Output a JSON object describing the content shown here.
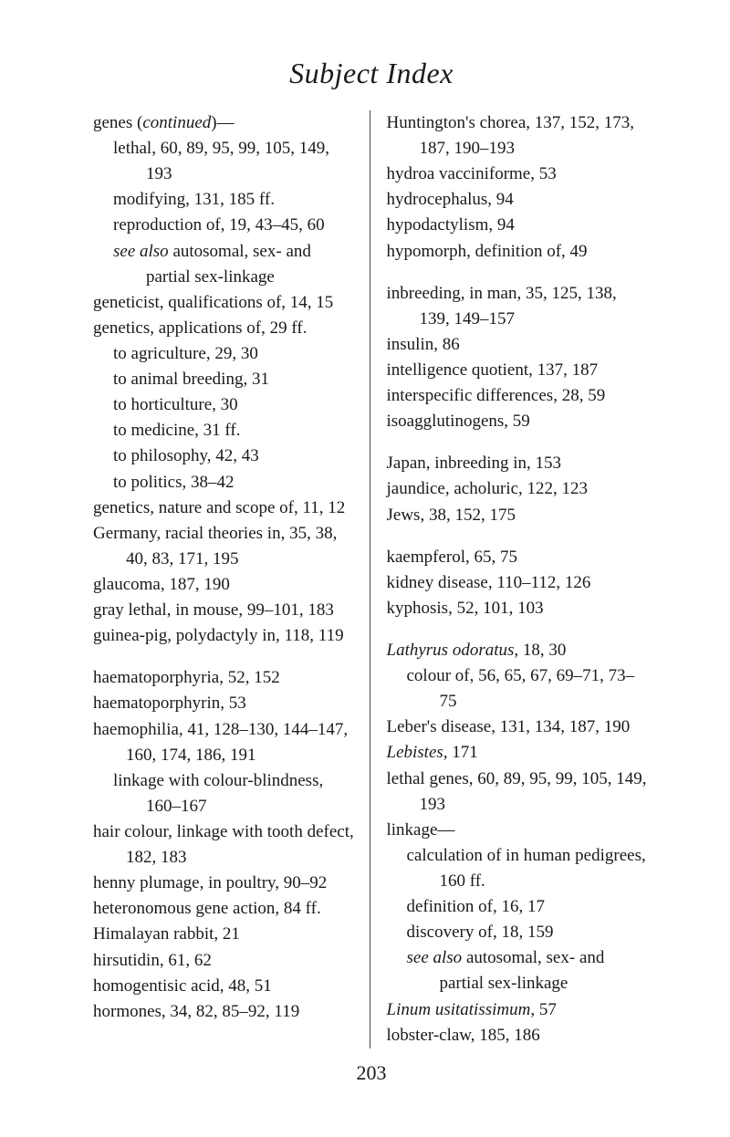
{
  "page": {
    "title": "Subject Index",
    "pageNumber": "203",
    "leftColumn": [
      {
        "type": "entry",
        "html": "genes (<span class='italic'>continued</span>)—"
      },
      {
        "type": "sub",
        "text": "lethal, 60, 89, 95, 99, 105, 149, 193"
      },
      {
        "type": "sub",
        "text": "modifying, 131, 185 ff."
      },
      {
        "type": "sub",
        "text": "reproduction of, 19, 43–45, 60"
      },
      {
        "type": "sub",
        "html": "<span class='italic'>see also</span> autosomal, sex- and partial sex-linkage"
      },
      {
        "type": "entry",
        "text": "geneticist, qualifications of, 14, 15"
      },
      {
        "type": "entry",
        "text": "genetics, applications of, 29 ff."
      },
      {
        "type": "sub",
        "text": "to agriculture, 29, 30"
      },
      {
        "type": "sub",
        "text": "to animal breeding, 31"
      },
      {
        "type": "sub",
        "text": "to horticulture, 30"
      },
      {
        "type": "sub",
        "text": "to medicine, 31 ff."
      },
      {
        "type": "sub",
        "text": "to philosophy, 42, 43"
      },
      {
        "type": "sub",
        "text": "to politics, 38–42"
      },
      {
        "type": "entry",
        "text": "genetics, nature and scope of, 11, 12"
      },
      {
        "type": "entry",
        "text": "Germany, racial theories in, 35, 38, 40, 83, 171, 195"
      },
      {
        "type": "entry",
        "text": "glaucoma, 187, 190"
      },
      {
        "type": "entry",
        "text": "gray lethal, in mouse, 99–101, 183"
      },
      {
        "type": "entry",
        "text": "guinea-pig, polydactyly in, 118, 119"
      },
      {
        "type": "gap"
      },
      {
        "type": "entry",
        "text": "haematoporphyria, 52, 152"
      },
      {
        "type": "entry",
        "text": "haematoporphyrin, 53"
      },
      {
        "type": "entry",
        "text": "haemophilia, 41, 128–130, 144–147, 160, 174, 186, 191"
      },
      {
        "type": "sub",
        "text": "linkage with colour-blindness, 160–167"
      },
      {
        "type": "entry",
        "text": "hair colour, linkage with tooth defect, 182, 183"
      },
      {
        "type": "entry",
        "text": "henny plumage, in poultry, 90–92"
      },
      {
        "type": "entry",
        "text": "heteronomous gene action, 84 ff."
      },
      {
        "type": "entry",
        "text": "Himalayan rabbit, 21"
      },
      {
        "type": "entry",
        "text": "hirsutidin, 61, 62"
      },
      {
        "type": "entry",
        "text": "homogentisic acid, 48, 51"
      },
      {
        "type": "entry",
        "text": "hormones, 34, 82, 85–92, 119"
      }
    ],
    "rightColumn": [
      {
        "type": "entry",
        "text": "Huntington's chorea, 137, 152, 173, 187, 190–193"
      },
      {
        "type": "entry",
        "text": "hydroa vacciniforme, 53"
      },
      {
        "type": "entry",
        "text": "hydrocephalus, 94"
      },
      {
        "type": "entry",
        "text": "hypodactylism, 94"
      },
      {
        "type": "entry",
        "text": "hypomorph, definition of, 49"
      },
      {
        "type": "gap"
      },
      {
        "type": "entry",
        "text": "inbreeding, in man, 35, 125, 138, 139, 149–157"
      },
      {
        "type": "entry",
        "text": "insulin, 86"
      },
      {
        "type": "entry",
        "text": "intelligence quotient, 137, 187"
      },
      {
        "type": "entry",
        "text": "interspecific differences, 28, 59"
      },
      {
        "type": "entry",
        "text": "isoagglutinogens, 59"
      },
      {
        "type": "gap"
      },
      {
        "type": "entry",
        "text": "Japan, inbreeding in, 153"
      },
      {
        "type": "entry",
        "text": "jaundice, acholuric, 122, 123"
      },
      {
        "type": "entry",
        "text": "Jews, 38, 152, 175"
      },
      {
        "type": "gap"
      },
      {
        "type": "entry",
        "text": "kaempferol, 65, 75"
      },
      {
        "type": "entry",
        "text": "kidney disease, 110–112, 126"
      },
      {
        "type": "entry",
        "text": "kyphosis, 52, 101, 103"
      },
      {
        "type": "gap"
      },
      {
        "type": "entry",
        "html": "<span class='italic'>Lathyrus odoratus</span>, 18, 30"
      },
      {
        "type": "sub",
        "text": "colour of, 56, 65, 67, 69–71, 73–75"
      },
      {
        "type": "entry",
        "text": "Leber's disease, 131, 134, 187, 190"
      },
      {
        "type": "entry",
        "html": "<span class='italic'>Lebistes</span>, 171"
      },
      {
        "type": "entry",
        "text": "lethal genes, 60, 89, 95, 99, 105, 149, 193"
      },
      {
        "type": "entry",
        "text": "linkage—"
      },
      {
        "type": "sub",
        "text": "calculation of in human pedigrees, 160 ff."
      },
      {
        "type": "sub",
        "text": "definition of, 16, 17"
      },
      {
        "type": "sub",
        "text": "discovery of, 18, 159"
      },
      {
        "type": "sub",
        "html": "<span class='italic'>see also</span> autosomal, sex- and partial sex-linkage"
      },
      {
        "type": "entry",
        "html": "<span class='italic'>Linum usitatissimum</span>, 57"
      },
      {
        "type": "entry",
        "text": "lobster-claw, 185, 186"
      }
    ]
  }
}
